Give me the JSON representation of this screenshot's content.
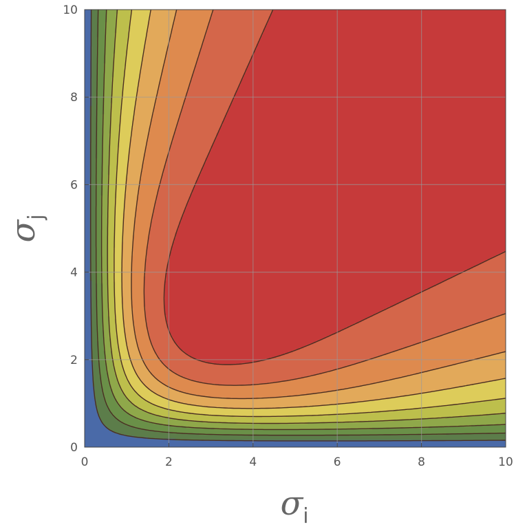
{
  "chart_data": {
    "type": "contour",
    "xlabel": "σi",
    "ylabel": "σj",
    "xlabel_symbol": "σ",
    "xlabel_sub": "i",
    "ylabel_symbol": "σ",
    "ylabel_sub": "j",
    "xlim": [
      0,
      10
    ],
    "ylim": [
      0,
      10
    ],
    "xticks": [
      0,
      2,
      4,
      6,
      8,
      10
    ],
    "yticks": [
      0,
      2,
      4,
      6,
      8,
      10
    ],
    "xtick_labels": [
      "0",
      "2",
      "4",
      "6",
      "8",
      "10"
    ],
    "ytick_labels": [
      "0",
      "2",
      "4",
      "6",
      "8",
      "10"
    ],
    "grid": true,
    "levels": 10,
    "color_bands": [
      "#4a6aa8",
      "#5c7d4a",
      "#6a9048",
      "#8fa84a",
      "#bdbf4c",
      "#ddcc5a",
      "#e2a95a",
      "#de8a4e",
      "#d4664a",
      "#c63a3a"
    ],
    "function_description": "Contours increase from low values near the axes (blue) to a maximum region (red) centered around σi≈6–10, σj≈5–8."
  }
}
